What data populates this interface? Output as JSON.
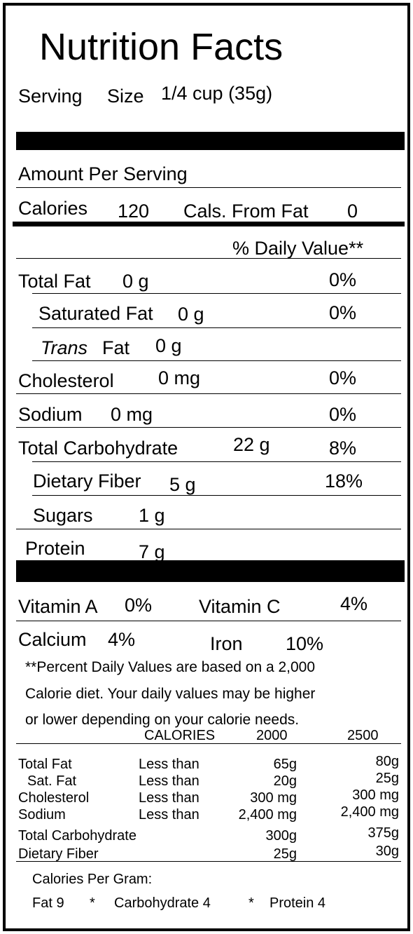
{
  "title": "Nutrition Facts",
  "serving": {
    "label": "Serving",
    "size_label": "Size",
    "value": "1/4 cup (35g)"
  },
  "amount_per_serving": "Amount Per Serving",
  "calories": {
    "label": "Calories",
    "value": "120",
    "from_fat_label": "Cals. From Fat",
    "from_fat_value": "0"
  },
  "daily_value_header": "% Daily Value**",
  "nutrients": {
    "total_fat": {
      "label": "Total Fat",
      "amount": "0 g",
      "dv": "0%"
    },
    "saturated_fat": {
      "label": "Saturated Fat",
      "amount": "0 g",
      "dv": "0%"
    },
    "trans_fat": {
      "label_italic": "Trans",
      "label_rest": "Fat",
      "amount": "0 g"
    },
    "cholesterol": {
      "label": "Cholesterol",
      "amount": "0 mg",
      "dv": "0%"
    },
    "sodium": {
      "label": "Sodium",
      "amount": "0 mg",
      "dv": "0%"
    },
    "total_carbohydrate": {
      "label": "Total Carbohydrate",
      "amount": "22 g",
      "dv": "8%"
    },
    "dietary_fiber": {
      "label": "Dietary Fiber",
      "amount": "5 g",
      "dv": "18%"
    },
    "sugars": {
      "label": "Sugars",
      "amount": "1 g"
    },
    "protein": {
      "label": "Protein",
      "amount": "7 g"
    }
  },
  "vitamins": {
    "vitamin_a": {
      "label": "Vitamin A",
      "value": "0%"
    },
    "vitamin_c": {
      "label": "Vitamin C",
      "value": "4%"
    },
    "calcium": {
      "label": "Calcium",
      "value": "4%"
    },
    "iron": {
      "label": "Iron",
      "value": "10%"
    }
  },
  "footnote": {
    "line1": "**Percent Daily Values are based on a 2,000",
    "line2": "Calorie diet.  Your daily values may be higher",
    "line3": "or lower depending on your calorie needs."
  },
  "reference_table": {
    "header": {
      "calories": "CALORIES",
      "col1": "2000",
      "col2": "2500"
    },
    "rows": [
      {
        "name": "Total Fat",
        "qualifier": "Less than",
        "col1": "65g",
        "col2": "80g"
      },
      {
        "name": "Sat. Fat",
        "qualifier": "Less than",
        "col1": "20g",
        "col2": "25g"
      },
      {
        "name": "Cholesterol",
        "qualifier": "Less than",
        "col1": "300 mg",
        "col2": "300 mg"
      },
      {
        "name": "Sodium",
        "qualifier": "Less than",
        "col1": "2,400 mg",
        "col2": "2,400 mg"
      },
      {
        "name": "Total Carbohydrate",
        "qualifier": "",
        "col1": "300g",
        "col2": "375g"
      },
      {
        "name": "Dietary Fiber",
        "qualifier": "",
        "col1": "25g",
        "col2": "30g"
      }
    ]
  },
  "calories_per_gram": {
    "label": "Calories Per Gram:",
    "fat": "Fat 9",
    "sep1": "*",
    "carbohydrate": "Carbohydrate  4",
    "sep2": "*",
    "protein": "Protein 4"
  }
}
